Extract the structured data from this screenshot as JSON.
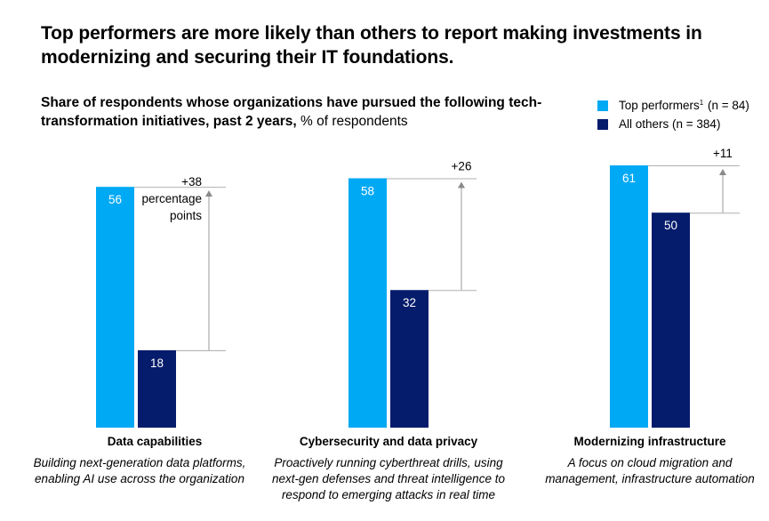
{
  "title": "Top performers are more likely than others to report making investments in modernizing and securing their IT foundations.",
  "subtitle": {
    "bold": "Share of respondents whose organizations have pursued the following tech-transformation initiatives, past 2 years,",
    "normal": " % of respondents"
  },
  "legend": [
    {
      "label": "Top performers",
      "sup": "1",
      "suffix": " (n = 84)",
      "color": "#00a9f4"
    },
    {
      "label": "All others",
      "sup": "",
      "suffix": " (n = 384)",
      "color": "#051c6c"
    }
  ],
  "chart_data": {
    "type": "bar",
    "categories": [
      "Data capabilities",
      "Cybersecurity and data privacy",
      "Modernizing infrastructure"
    ],
    "descriptions": [
      "Building next-generation data platforms, enabling AI use across the organization",
      "Proactively running cyberthreat drills, using next-gen defenses and threat intelligence to respond to emerging attacks in real time",
      "A focus on cloud migration and management, infrastructure automation"
    ],
    "series": [
      {
        "name": "Top performers (n = 84)",
        "values": [
          56,
          58,
          61
        ],
        "color": "#00a9f4"
      },
      {
        "name": "All others (n = 384)",
        "values": [
          18,
          32,
          50
        ],
        "color": "#051c6c"
      }
    ],
    "differences": [
      "+38",
      "+26",
      "+11"
    ],
    "difference_unit": "percentage points",
    "ylim": [
      0,
      61
    ]
  }
}
